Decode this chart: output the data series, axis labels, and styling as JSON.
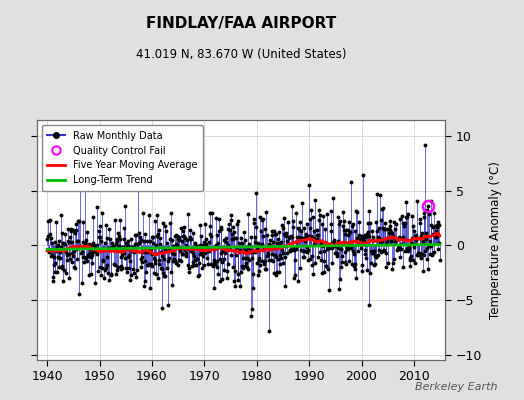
{
  "title": "FINDLAY/FAA AIRPORT",
  "subtitle": "41.019 N, 83.670 W (United States)",
  "ylabel": "Temperature Anomaly (°C)",
  "watermark": "Berkeley Earth",
  "xlim": [
    1938,
    2016
  ],
  "ylim": [
    -10.5,
    11.5
  ],
  "yticks": [
    -10,
    -5,
    0,
    5,
    10
  ],
  "xticks": [
    1940,
    1950,
    1960,
    1970,
    1980,
    1990,
    2000,
    2010
  ],
  "start_year": 1940,
  "end_year": 2014,
  "bg_color": "#e0e0e0",
  "plot_bg_color": "#ffffff",
  "raw_line_color": "#3333cc",
  "raw_dot_color": "#000000",
  "ma_color": "#ff0000",
  "trend_color": "#00bb00",
  "qc_color": "#ff00ff",
  "seed": 42,
  "qc_point_year": 2012.75,
  "qc_point_val": 3.6,
  "trend_slope": 0.006,
  "trend_intercept": -0.15,
  "noise_std": 1.6,
  "ma_window": 60
}
